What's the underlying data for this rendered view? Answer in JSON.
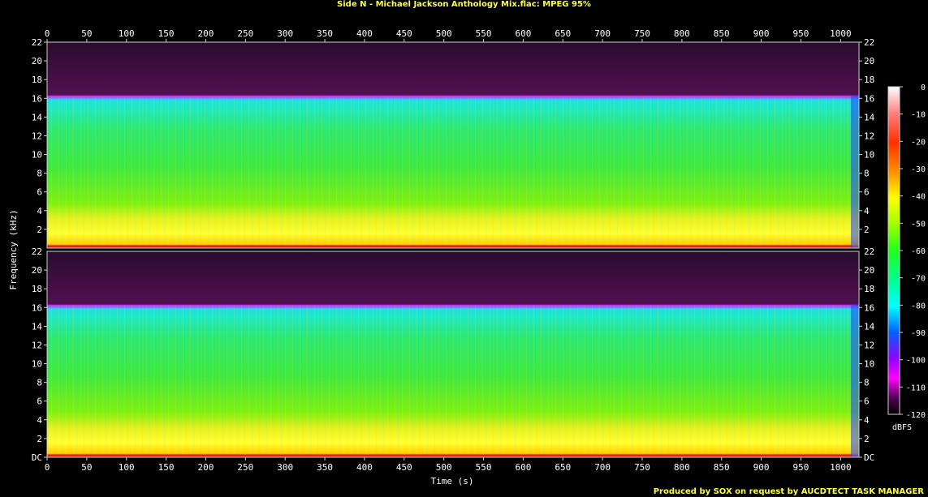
{
  "title": "Side N - Michael Jackson Anthology Mix.flac: MPEG 95%",
  "credit": "Produced by SOX on request by AUCDTECT TASK MANAGER",
  "colors": {
    "background": "#000000",
    "title": "#ffff40",
    "frame": "#d0d0d0"
  },
  "chart_data": {
    "type": "heatmap",
    "title": "Side N - Michael Jackson Anthology Mix.flac: MPEG 95%",
    "xlabel": "Time (s)",
    "ylabel": "Frequency (kHz)",
    "colorbar_label": "dBFS",
    "x_ticks": [
      "0",
      "50",
      "100",
      "150",
      "200",
      "250",
      "300",
      "350",
      "400",
      "450",
      "500",
      "550",
      "600",
      "650",
      "700",
      "750",
      "800",
      "850",
      "900",
      "950",
      "1000"
    ],
    "x_range": [
      0,
      1015
    ],
    "y_range_khz": [
      0,
      22
    ],
    "y_ticks": [
      "DC",
      "2",
      "4",
      "6",
      "8",
      "10",
      "12",
      "14",
      "16",
      "18",
      "20",
      "22"
    ],
    "colorbar_ticks": [
      "0",
      "-10",
      "-20",
      "-30",
      "-40",
      "-50",
      "-60",
      "-70",
      "-80",
      "-90",
      "-100",
      "-110",
      "-120"
    ],
    "colorbar_range": [
      -120,
      0
    ],
    "channels": [
      {
        "cutoff_khz": 16.2,
        "channel": 1
      },
      {
        "cutoff_khz": 16.2,
        "channel": 2
      }
    ]
  }
}
